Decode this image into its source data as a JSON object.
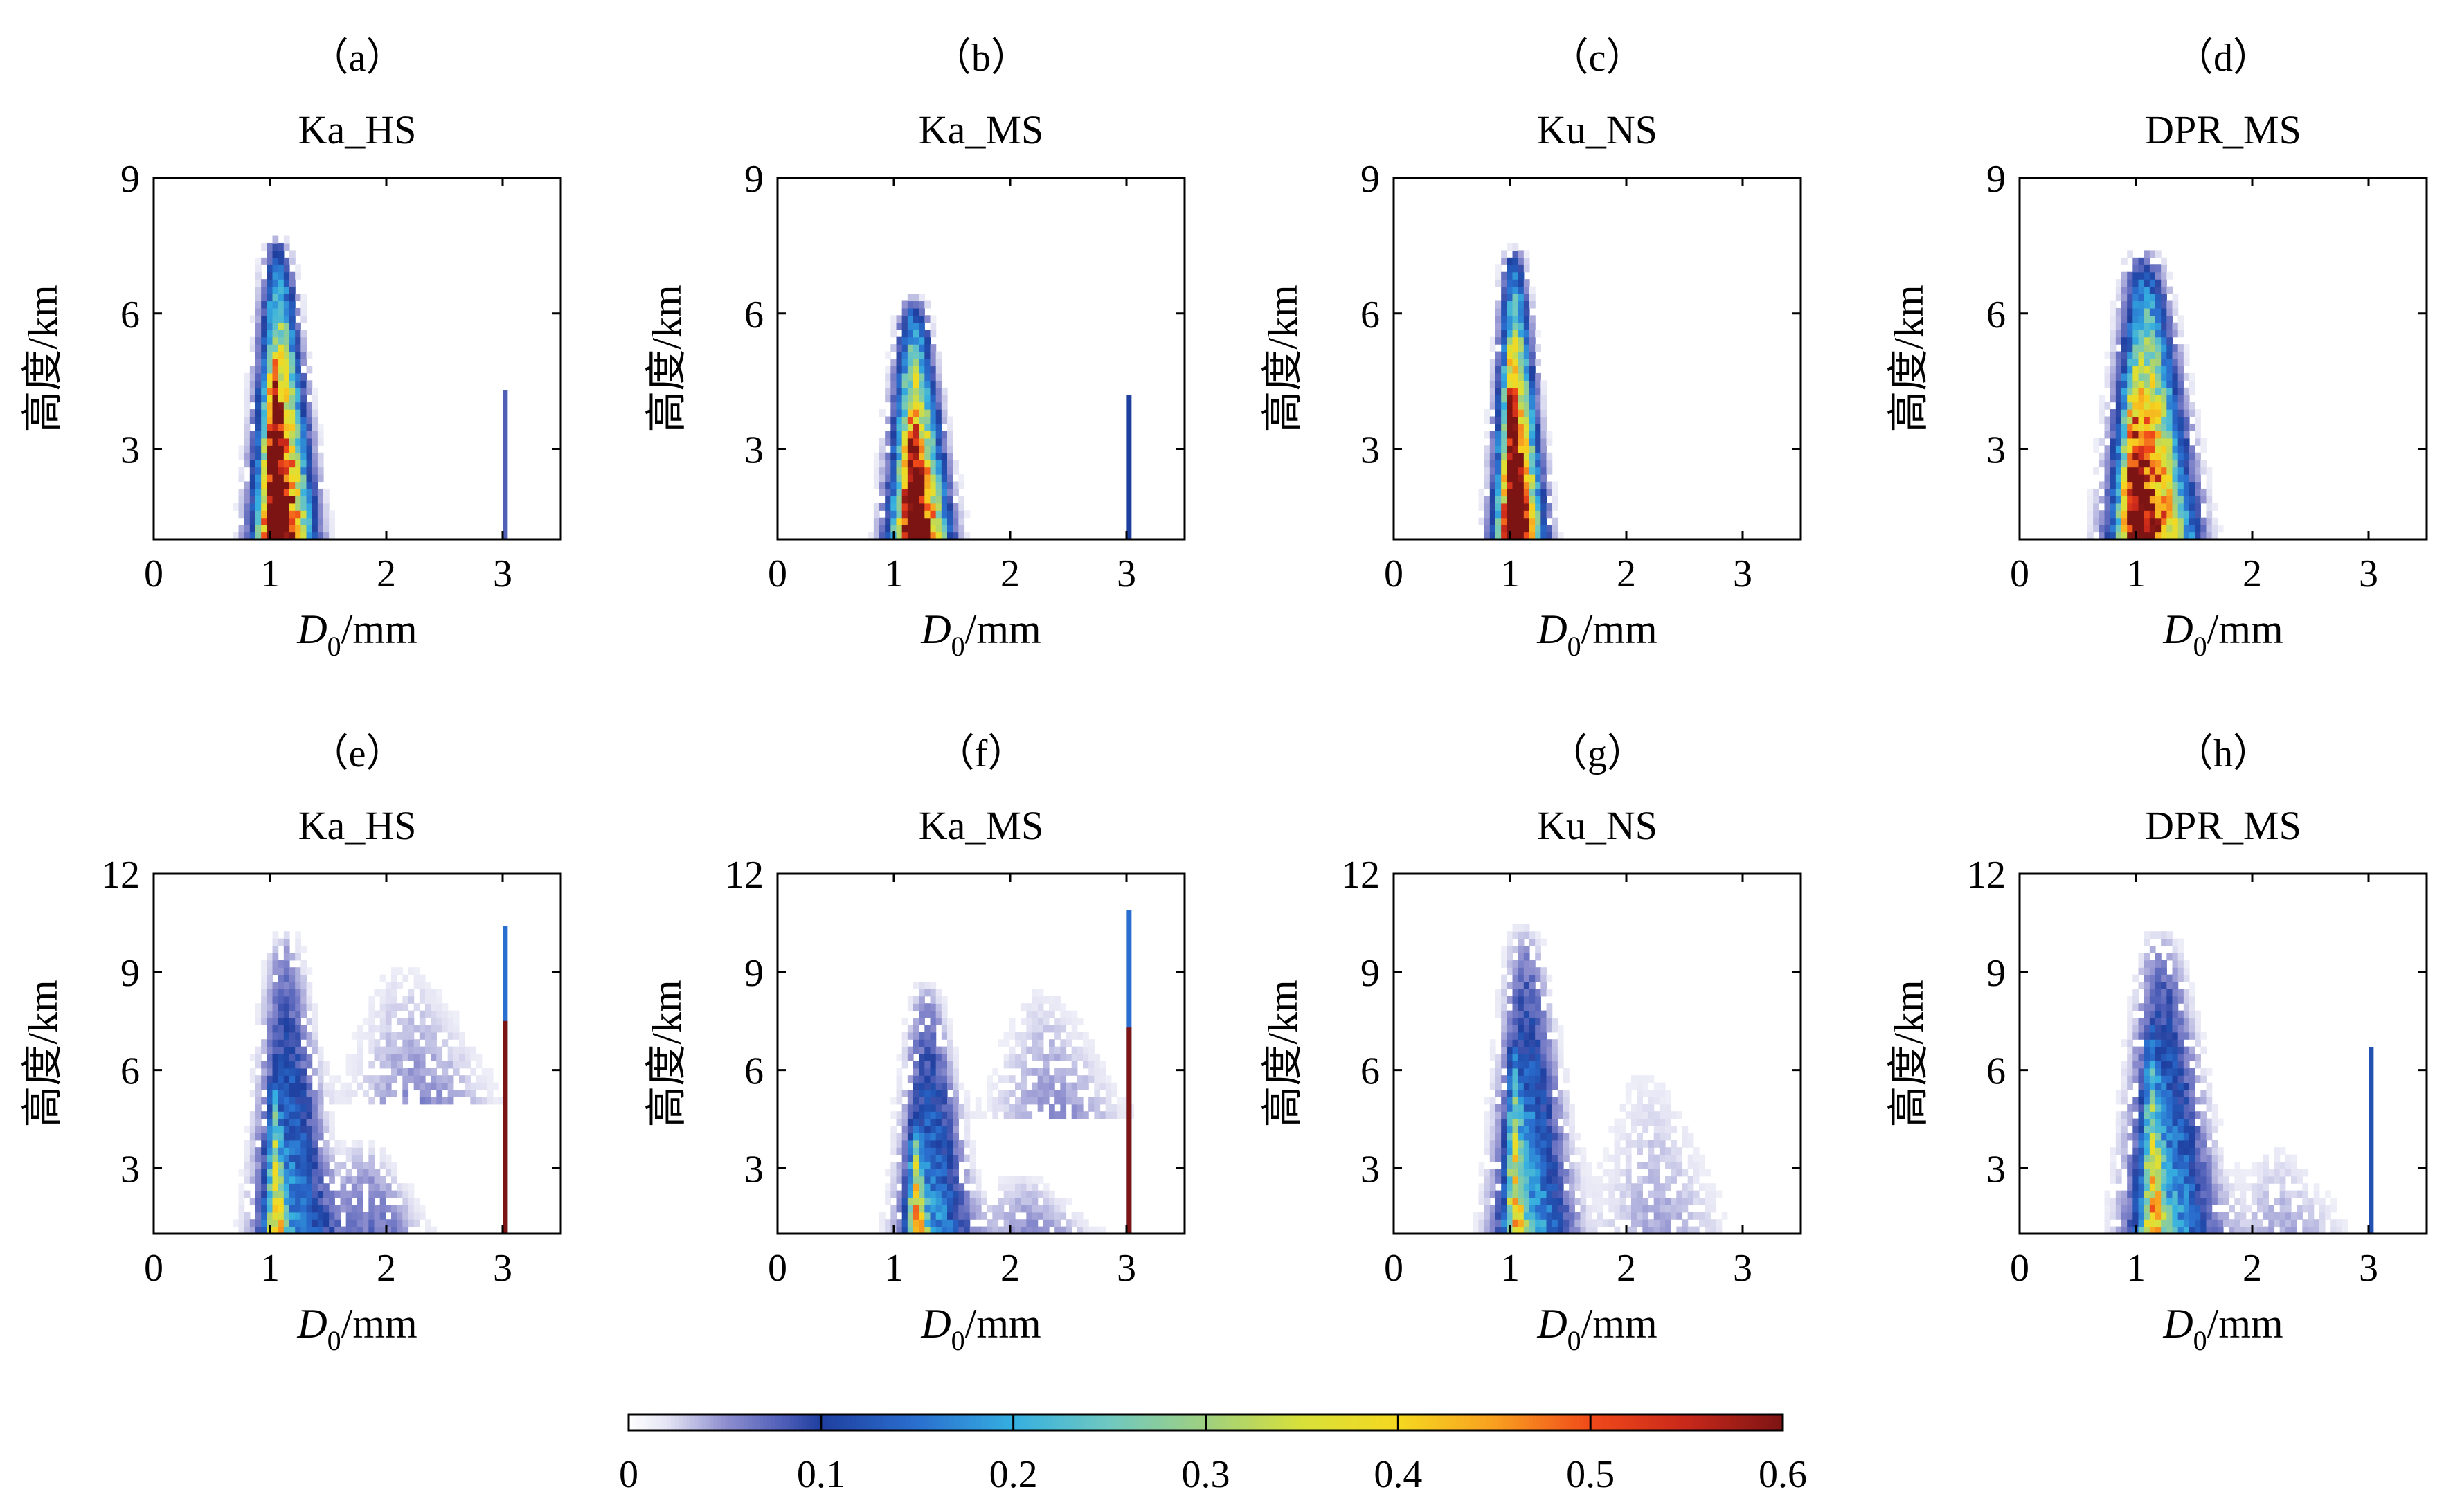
{
  "chart_data": [
    {
      "type": "heatmap",
      "panel": "（a）",
      "title": "Ka_HS",
      "xlabel_var": "D",
      "xlabel_sub": "0",
      "xlabel_unit": "/mm",
      "ylabel": "高度/km",
      "xlim": [
        0,
        3.5
      ],
      "ylim": [
        1,
        9
      ],
      "xticks": [
        "0",
        "1",
        "2",
        "3"
      ],
      "yticks": [
        "3",
        "6",
        "9"
      ],
      "xtick_values": [
        0,
        1,
        2,
        3
      ],
      "ytick_values": [
        3,
        6,
        9
      ],
      "blobs": [
        {
          "x": 1.12,
          "sx": 0.22,
          "ymin": 1,
          "ytop": 7.7,
          "peak": 0.6
        },
        {
          "x": 1.05,
          "sx": 0.09,
          "ymin": 1,
          "ytop": 5.2,
          "peak": 0.45
        }
      ],
      "lines": [
        {
          "x": 3.02,
          "ytop": 4.3,
          "v": 0.08
        }
      ]
    },
    {
      "type": "heatmap",
      "panel": "（b）",
      "title": "Ka_MS",
      "xlabel_var": "D",
      "xlabel_sub": "0",
      "xlabel_unit": "/mm",
      "ylabel": "高度/km",
      "xlim": [
        0,
        3.5
      ],
      "ylim": [
        1,
        9
      ],
      "xticks": [
        "0",
        "1",
        "2",
        "3"
      ],
      "yticks": [
        "3",
        "6",
        "9"
      ],
      "xtick_values": [
        0,
        1,
        2,
        3
      ],
      "ytick_values": [
        3,
        6,
        9
      ],
      "blobs": [
        {
          "x": 1.22,
          "sx": 0.22,
          "ymin": 1,
          "ytop": 6.4,
          "peak": 0.6
        },
        {
          "x": 1.18,
          "sx": 0.1,
          "ymin": 1,
          "ytop": 3.8,
          "peak": 0.35
        }
      ],
      "lines": [
        {
          "x": 3.02,
          "ytop": 4.2,
          "v": 0.1
        }
      ]
    },
    {
      "type": "heatmap",
      "panel": "（c）",
      "title": "Ku_NS",
      "xlabel_var": "D",
      "xlabel_sub": "0",
      "xlabel_unit": "/mm",
      "ylabel": "高度/km",
      "xlim": [
        0,
        3.5
      ],
      "ylim": [
        1,
        9
      ],
      "xticks": [
        "0",
        "1",
        "2",
        "3"
      ],
      "yticks": [
        "3",
        "6",
        "9"
      ],
      "xtick_values": [
        0,
        1,
        2,
        3
      ],
      "ytick_values": [
        3,
        6,
        9
      ],
      "blobs": [
        {
          "x": 1.08,
          "sx": 0.18,
          "ymin": 1,
          "ytop": 7.5,
          "peak": 0.6
        },
        {
          "x": 1.03,
          "sx": 0.08,
          "ymin": 1,
          "ytop": 5.5,
          "peak": 0.4
        }
      ],
      "lines": []
    },
    {
      "type": "heatmap",
      "panel": "（d）",
      "title": "DPR_MS",
      "xlabel_var": "D",
      "xlabel_sub": "0",
      "xlabel_unit": "/mm",
      "ylabel": "高度/km",
      "xlim": [
        0,
        3.5
      ],
      "ylim": [
        1,
        9
      ],
      "xticks": [
        "0",
        "1",
        "2",
        "3"
      ],
      "yticks": [
        "3",
        "6",
        "9"
      ],
      "xtick_values": [
        0,
        1,
        2,
        3
      ],
      "ytick_values": [
        3,
        6,
        9
      ],
      "blobs": [
        {
          "x": 1.15,
          "sx": 0.3,
          "ymin": 1,
          "ytop": 7.4,
          "peak": 0.55
        },
        {
          "x": 1.0,
          "sx": 0.12,
          "ymin": 1,
          "ytop": 5.0,
          "peak": 0.35
        }
      ],
      "lines": []
    },
    {
      "type": "heatmap",
      "panel": "（e）",
      "title": "Ka_HS",
      "xlabel_var": "D",
      "xlabel_sub": "0",
      "xlabel_unit": "/mm",
      "ylabel": "高度/km",
      "xlim": [
        0,
        3.5
      ],
      "ylim": [
        1,
        12
      ],
      "xticks": [
        "0",
        "1",
        "2",
        "3"
      ],
      "yticks": [
        "3",
        "6",
        "9",
        "12"
      ],
      "xtick_values": [
        0,
        1,
        2,
        3
      ],
      "ytick_values": [
        3,
        6,
        9,
        12
      ],
      "blobs": [
        {
          "x": 1.2,
          "sx": 0.3,
          "ymin": 1,
          "ytop": 10.4,
          "peak": 0.18
        },
        {
          "x": 1.05,
          "sx": 0.08,
          "ymin": 1,
          "ytop": 6.0,
          "peak": 0.3
        },
        {
          "x": 2.3,
          "sx": 0.6,
          "ymin": 5.0,
          "ytop": 9.5,
          "peak": 0.05
        },
        {
          "x": 1.9,
          "sx": 0.4,
          "ymin": 1,
          "ytop": 4.0,
          "peak": 0.07
        }
      ],
      "lines": [
        {
          "x": 3.02,
          "ytop": 10.4,
          "v": 0.15
        },
        {
          "x": 3.02,
          "ytop": 7.5,
          "v": 0.6
        }
      ]
    },
    {
      "type": "heatmap",
      "panel": "（f）",
      "title": "Ka_MS",
      "xlabel_var": "D",
      "xlabel_sub": "0",
      "xlabel_unit": "/mm",
      "ylabel": "高度/km",
      "xlim": [
        0,
        3.5
      ],
      "ylim": [
        1,
        12
      ],
      "xticks": [
        "0",
        "1",
        "2",
        "3"
      ],
      "yticks": [
        "3",
        "6",
        "9",
        "12"
      ],
      "xtick_values": [
        0,
        1,
        2,
        3
      ],
      "ytick_values": [
        3,
        6,
        9,
        12
      ],
      "blobs": [
        {
          "x": 1.35,
          "sx": 0.28,
          "ymin": 1,
          "ytop": 8.8,
          "peak": 0.18
        },
        {
          "x": 1.2,
          "sx": 0.08,
          "ymin": 1,
          "ytop": 4.5,
          "peak": 0.35
        },
        {
          "x": 2.4,
          "sx": 0.55,
          "ymin": 4.5,
          "ytop": 8.8,
          "peak": 0.05
        },
        {
          "x": 2.2,
          "sx": 0.5,
          "ymin": 1,
          "ytop": 3.0,
          "peak": 0.05
        }
      ],
      "lines": [
        {
          "x": 3.02,
          "ytop": 10.9,
          "v": 0.15
        },
        {
          "x": 3.02,
          "ytop": 7.3,
          "v": 0.6
        }
      ]
    },
    {
      "type": "heatmap",
      "panel": "（g）",
      "title": "Ku_NS",
      "xlabel_var": "D",
      "xlabel_sub": "0",
      "xlabel_unit": "/mm",
      "ylabel": "高度/km",
      "xlim": [
        0,
        3.5
      ],
      "ylim": [
        1,
        12
      ],
      "xticks": [
        "0",
        "1",
        "2",
        "3"
      ],
      "yticks": [
        "3",
        "6",
        "9",
        "12"
      ],
      "xtick_values": [
        0,
        1,
        2,
        3
      ],
      "ytick_values": [
        3,
        6,
        9,
        12
      ],
      "blobs": [
        {
          "x": 1.2,
          "sx": 0.3,
          "ymin": 1,
          "ytop": 10.5,
          "peak": 0.2
        },
        {
          "x": 1.05,
          "sx": 0.08,
          "ymin": 1,
          "ytop": 7.0,
          "peak": 0.3
        },
        {
          "x": 2.3,
          "sx": 0.55,
          "ymin": 1,
          "ytop": 6.5,
          "peak": 0.04
        }
      ],
      "lines": []
    },
    {
      "type": "heatmap",
      "panel": "（h）",
      "title": "DPR_MS",
      "xlabel_var": "D",
      "xlabel_sub": "0",
      "xlabel_unit": "/mm",
      "ylabel": "高度/km",
      "xlim": [
        0,
        3.5
      ],
      "ylim": [
        1,
        12
      ],
      "xticks": [
        "0",
        "1",
        "2",
        "3"
      ],
      "yticks": [
        "3",
        "6",
        "9",
        "12"
      ],
      "xtick_values": [
        0,
        1,
        2,
        3
      ],
      "ytick_values": [
        3,
        6,
        9,
        12
      ],
      "blobs": [
        {
          "x": 1.3,
          "sx": 0.35,
          "ymin": 1,
          "ytop": 10.4,
          "peak": 0.2
        },
        {
          "x": 1.15,
          "sx": 0.1,
          "ymin": 1,
          "ytop": 7.5,
          "peak": 0.28
        },
        {
          "x": 2.3,
          "sx": 0.5,
          "ymin": 1,
          "ytop": 4.0,
          "peak": 0.04
        }
      ],
      "lines": [
        {
          "x": 3.02,
          "ytop": 6.7,
          "v": 0.12
        }
      ]
    }
  ],
  "colorbar": {
    "ticks": [
      "0",
      "0.1",
      "0.2",
      "0.3",
      "0.4",
      "0.5",
      "0.6"
    ],
    "tick_values": [
      0,
      0.1,
      0.2,
      0.3,
      0.4,
      0.5,
      0.6
    ],
    "range": [
      0,
      0.6
    ],
    "colormap": [
      [
        0.0,
        "#ffffff"
      ],
      [
        0.02,
        "#e4e4f4"
      ],
      [
        0.05,
        "#8f8fcf"
      ],
      [
        0.08,
        "#4f5fb8"
      ],
      [
        0.1,
        "#1f3f9f"
      ],
      [
        0.15,
        "#2a6fcf"
      ],
      [
        0.2,
        "#35afe0"
      ],
      [
        0.25,
        "#70c8c0"
      ],
      [
        0.3,
        "#9fd080"
      ],
      [
        0.35,
        "#d8e03a"
      ],
      [
        0.4,
        "#f5d820"
      ],
      [
        0.45,
        "#f8a020"
      ],
      [
        0.5,
        "#f04a1a"
      ],
      [
        0.55,
        "#c8281a"
      ],
      [
        0.6,
        "#7c1414"
      ]
    ]
  }
}
